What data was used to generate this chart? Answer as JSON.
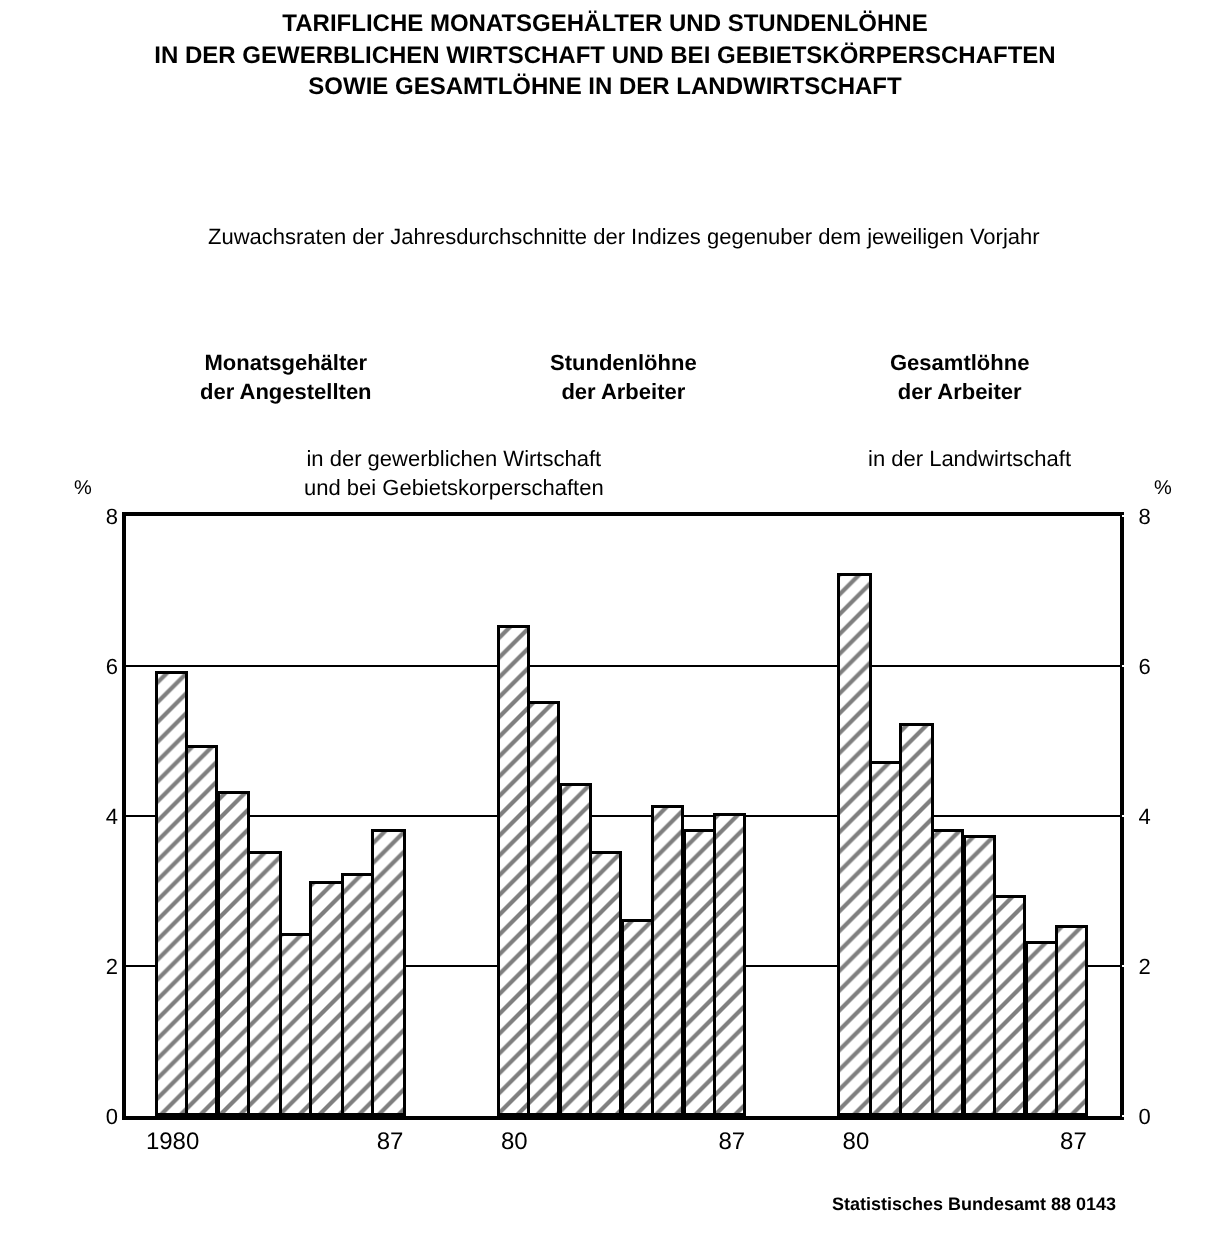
{
  "chart_data": {
    "type": "bar",
    "title": "TARIFLICHE MONATSGEHÄLTER UND STUNDENLÖHNE\nIN DER GEWERBLICHEN WIRTSCHAFT UND BEI GEBIETSKÖRPERSCHAFTEN\nSOWIE GESAMTLÖHNE IN DER LANDWIRTSCHAFT",
    "subtitle": "Zuwachsraten der Jahresdurchschnitte der Indizes gegenuber dem jeweiligen Vorjahr",
    "ylabel": "%",
    "y2label": "%",
    "categories": [
      null,
      "1980",
      null,
      null,
      null,
      null,
      null,
      null,
      "87",
      null,
      null,
      null,
      "80",
      null,
      null,
      null,
      null,
      null,
      null,
      "87",
      null,
      null,
      null,
      "80",
      null,
      null,
      null,
      null,
      null,
      null,
      "87",
      null
    ],
    "series": [
      {
        "color": "#000000",
        "values": [
          null,
          5.9,
          4.9,
          4.3,
          3.5,
          2.4,
          3.1,
          3.2,
          3.8,
          null,
          null,
          null,
          6.5,
          5.5,
          4.4,
          3.5,
          2.6,
          4.1,
          3.8,
          4.0,
          null,
          null,
          null,
          7.2,
          4.7,
          5.2,
          3.8,
          3.7,
          2.9,
          2.3,
          2.5,
          null
        ]
      }
    ],
    "ylim": [
      0,
      8
    ],
    "yticks": [
      0,
      2,
      4,
      6,
      8
    ],
    "y2lim": [
      0,
      8
    ],
    "y2ticks": [
      0,
      2,
      4,
      6,
      8
    ],
    "grid": "y",
    "annotations": [
      "Monatsgehälter\nder Angestellten",
      "Stundenlöhne\nder Arbeiter",
      "Gesamtlöhne\nder Arbeiter",
      "in der gewerblichen Wirtschaft\nund bei Gebietskorperschaften",
      "in der Landwirtschaft",
      "Statistisches Bundesamt 88 0143"
    ]
  }
}
